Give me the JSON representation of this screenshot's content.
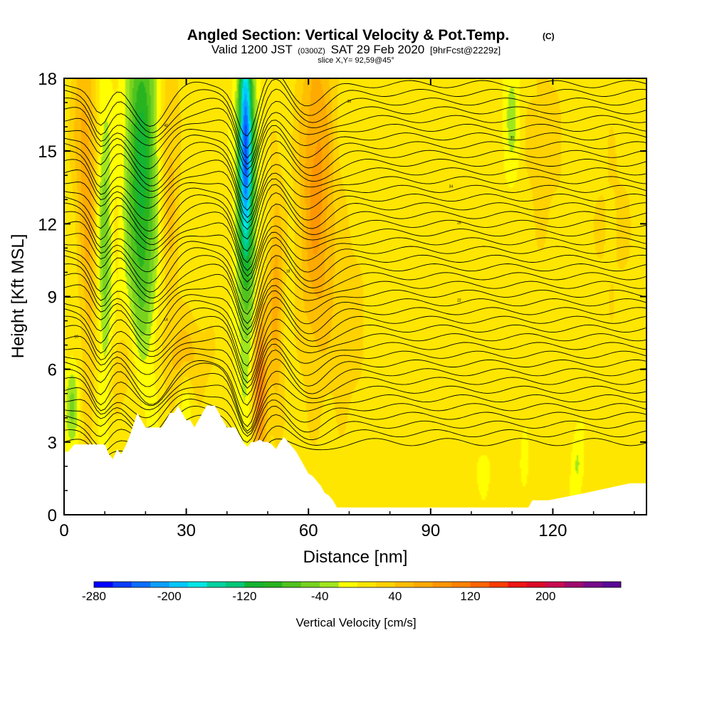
{
  "chart_data": {
    "type": "heatmap",
    "title": "Angled Section: Vertical Velocity & Pot.Temp.",
    "title_mark": "(C)",
    "subtitle_parts": {
      "valid_prefix": "Valid 1200 JST",
      "zulu": "(0300Z)",
      "date": "SAT 29 Feb 2020",
      "forecast": "[9hrFcst@2229z]"
    },
    "slice_label": "slice X,Y= 92,59@45°",
    "xlabel": "Distance [nm]",
    "ylabel": "Height [Kft MSL]",
    "xlim": [
      0,
      143
    ],
    "ylim": [
      0,
      18
    ],
    "x_ticks": [
      0,
      30,
      60,
      90,
      120
    ],
    "y_ticks": [
      0,
      3,
      6,
      9,
      12,
      15,
      18
    ],
    "colorbar": {
      "label": "Vertical Velocity [cm/s]",
      "min": -280,
      "max": 280,
      "step": 20,
      "tick_values": [
        -280,
        -200,
        -120,
        -40,
        40,
        120,
        200
      ],
      "colors": [
        "#0000ff",
        "#0a3cff",
        "#0a6eff",
        "#0aa0ff",
        "#00c8ff",
        "#00e6e6",
        "#00d2a0",
        "#00c878",
        "#14b432",
        "#28b41e",
        "#50c31e",
        "#78d21e",
        "#a0e61e",
        "#ffff00",
        "#ffe600",
        "#ffd200",
        "#ffbe00",
        "#ffaa00",
        "#ff9600",
        "#ff8200",
        "#ff6400",
        "#ff3c00",
        "#f01414",
        "#dc0a28",
        "#c80a50",
        "#a00a6e",
        "#780a8c",
        "#5a0a96"
      ]
    },
    "updrafts": [
      {
        "x": 6,
        "y": 12.0,
        "sx": 1.4,
        "sy": 5.2,
        "value": 50
      },
      {
        "x": 26,
        "y": 14.0,
        "sx": 1.6,
        "sy": 4.2,
        "value": 40
      },
      {
        "x": 48,
        "y": 5.5,
        "sx": 1.3,
        "sy": 2.4,
        "value": 110
      },
      {
        "x": 52,
        "y": 9.0,
        "sx": 1.3,
        "sy": 3.5,
        "value": 60
      },
      {
        "x": 62,
        "y": 13.5,
        "sx": 3.0,
        "sy": 5.0,
        "value": 80
      },
      {
        "x": 70,
        "y": 8.0,
        "sx": 3.0,
        "sy": 3.0,
        "value": 25
      },
      {
        "x": 30,
        "y": 6.5,
        "sx": 4.0,
        "sy": 1.2,
        "value": 40
      },
      {
        "x": 15,
        "y": 6.0,
        "sx": 3.0,
        "sy": 1.4,
        "value": 30
      },
      {
        "x": 4,
        "y": 16.0,
        "sx": 1.5,
        "sy": 3.0,
        "value": 40
      },
      {
        "x": 118,
        "y": 15.0,
        "sx": 4.0,
        "sy": 3.0,
        "value": 20
      },
      {
        "x": 135,
        "y": 12.0,
        "sx": 4.0,
        "sy": 3.0,
        "value": 15
      }
    ],
    "downdrafts": [
      {
        "x": 19,
        "y": 14.0,
        "sx": 2.6,
        "sy": 5.0,
        "value": -120
      },
      {
        "x": 10,
        "y": 11.0,
        "sx": 1.2,
        "sy": 4.5,
        "value": -60
      },
      {
        "x": 44.5,
        "y": 15.5,
        "sx": 1.1,
        "sy": 3.0,
        "value": -200
      },
      {
        "x": 45,
        "y": 12.0,
        "sx": 1.8,
        "sy": 5.0,
        "value": -80
      },
      {
        "x": 2,
        "y": 4.5,
        "sx": 1.2,
        "sy": 1.2,
        "value": -50
      },
      {
        "x": 110,
        "y": 16.5,
        "sx": 1.5,
        "sy": 2.0,
        "value": -35
      },
      {
        "x": 103,
        "y": 1.8,
        "sx": 1.2,
        "sy": 0.6,
        "value": -20
      },
      {
        "x": 126,
        "y": 2.0,
        "sx": 1.0,
        "sy": 1.0,
        "value": -30
      },
      {
        "x": 113,
        "y": 2.0,
        "sx": 0.7,
        "sy": 0.8,
        "value": -20
      },
      {
        "x": 30,
        "y": 5.0,
        "sx": 1.2,
        "sy": 1.0,
        "value": -25
      }
    ],
    "terrain": {
      "x": [
        0,
        1,
        2.5,
        10,
        11,
        12,
        13,
        14,
        15,
        16,
        17,
        18,
        19,
        20,
        24,
        25,
        26,
        27,
        28,
        29,
        30,
        31,
        32,
        33,
        34,
        35,
        36,
        37,
        38,
        39,
        40,
        41,
        42,
        43,
        44,
        45,
        46,
        47,
        48,
        49,
        50,
        51,
        52,
        53,
        54,
        55,
        56,
        57,
        58,
        59,
        60,
        61,
        62,
        63,
        64,
        65,
        66,
        67,
        68,
        100,
        114,
        115,
        119,
        128,
        139,
        143
      ],
      "y": [
        2.6,
        2.6,
        2.9,
        2.9,
        2.5,
        2.3,
        2.7,
        2.5,
        2.8,
        3.2,
        3.7,
        4.2,
        3.9,
        3.6,
        3.6,
        3.9,
        4.2,
        4.2,
        4.5,
        4.2,
        3.9,
        3.9,
        3.6,
        3.9,
        4.2,
        4.5,
        4.5,
        4.5,
        4.2,
        3.9,
        3.6,
        3.6,
        3.6,
        3.3,
        3.0,
        2.8,
        3.0,
        3.0,
        3.1,
        3.0,
        3.0,
        2.9,
        2.7,
        3.0,
        3.2,
        3.0,
        2.8,
        2.6,
        2.3,
        2.0,
        1.7,
        1.6,
        1.4,
        1.2,
        0.9,
        0.8,
        0.6,
        0.3,
        0.3,
        0.3,
        0.3,
        0.6,
        0.6,
        0.9,
        1.3,
        1.3
      ]
    },
    "contour_labels": [
      "10",
      "14",
      "18",
      "22",
      "26",
      "30",
      "34",
      "38",
      "42"
    ]
  }
}
